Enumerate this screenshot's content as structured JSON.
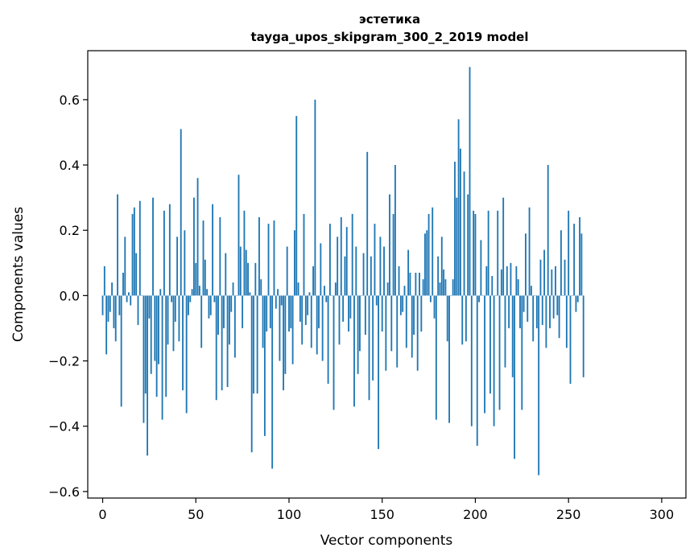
{
  "chart_data": {
    "type": "bar",
    "title_line1": "эстетика",
    "title_line2": "tayga_upos_skipgram_300_2_2019 model",
    "xlabel": "Vector components",
    "ylabel": "Components values",
    "xlim": [
      -8,
      313
    ],
    "ylim": [
      -0.62,
      0.75
    ],
    "xticks": [
      0,
      50,
      100,
      150,
      200,
      250,
      300
    ],
    "yticks": [
      -0.6,
      -0.4,
      -0.2,
      0.0,
      0.2,
      0.4,
      0.6
    ],
    "xtick_labels": [
      "0",
      "50",
      "100",
      "150",
      "200",
      "250",
      "300"
    ],
    "ytick_labels": [
      "−0.6",
      "−0.4",
      "−0.2",
      "0.0",
      "0.2",
      "0.4",
      "0.6"
    ],
    "bar_color": "#1f77b4",
    "grid": false,
    "values": [
      -0.06,
      0.09,
      -0.18,
      -0.08,
      -0.05,
      0.04,
      -0.1,
      -0.14,
      0.31,
      -0.06,
      -0.34,
      0.07,
      0.18,
      -0.02,
      0.01,
      -0.03,
      0.25,
      0.27,
      0.13,
      -0.09,
      0.29,
      0.0,
      -0.39,
      -0.3,
      -0.49,
      -0.07,
      -0.24,
      0.3,
      -0.2,
      -0.31,
      -0.21,
      0.02,
      -0.38,
      0.26,
      -0.31,
      -0.15,
      0.28,
      -0.02,
      -0.17,
      -0.08,
      0.18,
      -0.14,
      0.51,
      -0.29,
      0.2,
      -0.36,
      -0.06,
      -0.02,
      0.02,
      0.3,
      0.1,
      0.36,
      0.03,
      -0.16,
      0.23,
      0.11,
      0.02,
      -0.07,
      -0.06,
      0.28,
      -0.02,
      -0.32,
      -0.12,
      0.24,
      -0.29,
      -0.1,
      0.13,
      -0.28,
      -0.15,
      -0.05,
      0.04,
      -0.19,
      0.0,
      0.37,
      0.15,
      -0.1,
      0.26,
      0.14,
      0.1,
      0.01,
      -0.48,
      -0.3,
      0.1,
      -0.3,
      0.24,
      0.05,
      -0.16,
      -0.43,
      -0.11,
      0.22,
      -0.1,
      -0.53,
      0.23,
      -0.04,
      0.02,
      -0.2,
      -0.03,
      -0.29,
      -0.24,
      0.15,
      -0.11,
      -0.1,
      -0.21,
      0.2,
      0.55,
      0.04,
      -0.08,
      -0.15,
      0.25,
      -0.09,
      -0.06,
      0.01,
      -0.16,
      0.09,
      0.6,
      -0.18,
      -0.1,
      0.16,
      -0.2,
      0.03,
      -0.02,
      -0.27,
      0.22,
      0.0,
      -0.35,
      0.04,
      0.18,
      -0.15,
      0.24,
      -0.08,
      0.12,
      0.21,
      -0.11,
      -0.07,
      0.25,
      -0.34,
      0.15,
      -0.24,
      -0.17,
      0.0,
      0.13,
      -0.12,
      0.44,
      -0.32,
      0.12,
      -0.26,
      0.22,
      -0.03,
      -0.47,
      0.18,
      -0.11,
      0.15,
      -0.23,
      0.04,
      0.31,
      -0.17,
      0.25,
      0.4,
      -0.22,
      0.09,
      -0.06,
      -0.05,
      0.03,
      -0.16,
      0.14,
      0.07,
      -0.19,
      -0.12,
      0.07,
      -0.23,
      0.07,
      -0.11,
      0.05,
      0.19,
      0.2,
      0.25,
      -0.02,
      0.27,
      -0.07,
      -0.38,
      0.12,
      0.04,
      0.18,
      0.08,
      0.05,
      -0.14,
      -0.39,
      0.0,
      0.05,
      0.41,
      0.3,
      0.54,
      0.45,
      -0.15,
      0.38,
      -0.14,
      0.31,
      0.7,
      -0.4,
      0.26,
      0.25,
      -0.46,
      -0.02,
      0.17,
      0.0,
      -0.36,
      0.09,
      0.26,
      -0.3,
      0.06,
      -0.4,
      0.0,
      0.26,
      -0.35,
      0.08,
      0.3,
      -0.22,
      0.09,
      -0.1,
      0.1,
      -0.25,
      -0.5,
      0.09,
      0.05,
      -0.1,
      -0.35,
      -0.05,
      0.19,
      -0.08,
      0.27,
      0.03,
      -0.14,
      0.0,
      -0.1,
      -0.55,
      0.11,
      -0.09,
      0.14,
      -0.16,
      0.4,
      -0.1,
      0.08,
      -0.07,
      0.09,
      -0.06,
      -0.13,
      0.2,
      0.0,
      0.11,
      -0.16,
      0.26,
      -0.27,
      0.0,
      0.22,
      -0.05,
      -0.02,
      0.24,
      0.19,
      -0.25
    ]
  }
}
